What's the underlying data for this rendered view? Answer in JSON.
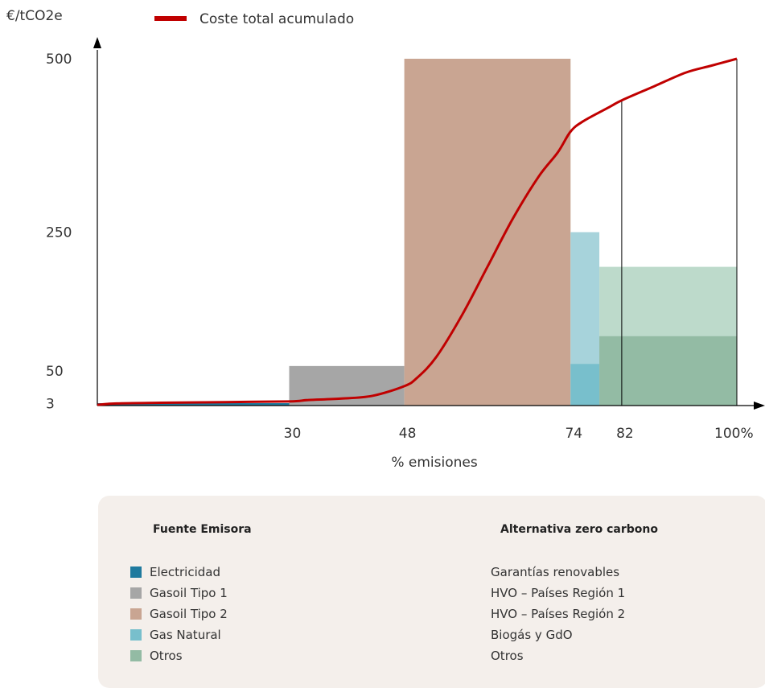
{
  "chart_data": {
    "type": "bar",
    "variant": "marginal-abatement-cost-curve",
    "title": "",
    "xlabel": "% emisiones",
    "ylabel": "€/tCO2e",
    "xlim": [
      0,
      100
    ],
    "ylim": [
      0,
      500
    ],
    "x_ticks": [
      {
        "value": 30,
        "label": "30"
      },
      {
        "value": 48,
        "label": "48"
      },
      {
        "value": 74,
        "label": "74"
      },
      {
        "value": 82,
        "label": "82"
      },
      {
        "value": 100,
        "label": "100%"
      }
    ],
    "y_ticks": [
      {
        "value": 3,
        "label": "3"
      },
      {
        "value": 50,
        "label": "50"
      },
      {
        "value": 250,
        "label": "250"
      },
      {
        "value": 500,
        "label": "500"
      }
    ],
    "bars": [
      {
        "name": "Electricidad",
        "x_start": 0,
        "x_end": 30,
        "value": 3,
        "color": "#1f7a9e"
      },
      {
        "name": "Gasoil Tipo 1",
        "x_start": 30,
        "x_end": 48,
        "value": 57,
        "color": "#a6a6a6"
      },
      {
        "name": "Gasoil Tipo 2",
        "x_start": 48,
        "x_end": 74,
        "value": 500,
        "color": "#c9a592"
      },
      {
        "name": "Gas Natural",
        "x_start": 74,
        "x_end": 78.5,
        "value": 250,
        "color": "#a7d3db",
        "base_value": 60,
        "base_color": "#78bfcc"
      },
      {
        "name": "Otros",
        "x_start": 78.5,
        "x_end": 100,
        "value": 200,
        "color": "#bddacb",
        "base_value": 100,
        "base_color": "#93bba4"
      }
    ],
    "series": [
      {
        "name": "Coste total acumulado",
        "color": "#c00000",
        "points": [
          [
            0,
            1
          ],
          [
            3,
            3
          ],
          [
            10,
            4
          ],
          [
            20,
            5
          ],
          [
            30,
            6
          ],
          [
            33,
            8
          ],
          [
            38,
            10
          ],
          [
            43,
            14
          ],
          [
            48,
            28
          ],
          [
            50,
            40
          ],
          [
            53,
            70
          ],
          [
            57,
            130
          ],
          [
            61,
            200
          ],
          [
            65,
            270
          ],
          [
            69,
            330
          ],
          [
            72,
            365
          ],
          [
            74,
            395
          ],
          [
            76,
            410
          ],
          [
            80,
            430
          ],
          [
            82,
            440
          ],
          [
            87,
            460
          ],
          [
            92,
            480
          ],
          [
            96,
            490
          ],
          [
            100,
            500
          ]
        ]
      }
    ],
    "reference_lines_x": [
      82,
      100
    ],
    "legend": {
      "position": "top",
      "entries": [
        "Coste total acumulado"
      ]
    }
  },
  "key": {
    "left_heading": "Fuente Emisora",
    "right_heading": "Alternativa zero carbono",
    "sources": [
      {
        "label": "Electricidad",
        "color": "#1f7a9e"
      },
      {
        "label": "Gasoil Tipo 1",
        "color": "#a6a6a6"
      },
      {
        "label": "Gasoil Tipo 2",
        "color": "#c9a592"
      },
      {
        "label": "Gas Natural",
        "color": "#78bfcc"
      },
      {
        "label": "Otros",
        "color": "#93bba4"
      }
    ],
    "alternatives": [
      "Garantías renovables",
      "HVO – Países Región 1",
      "HVO – Países Región 2",
      "Biogás y GdO",
      "Otros"
    ]
  }
}
